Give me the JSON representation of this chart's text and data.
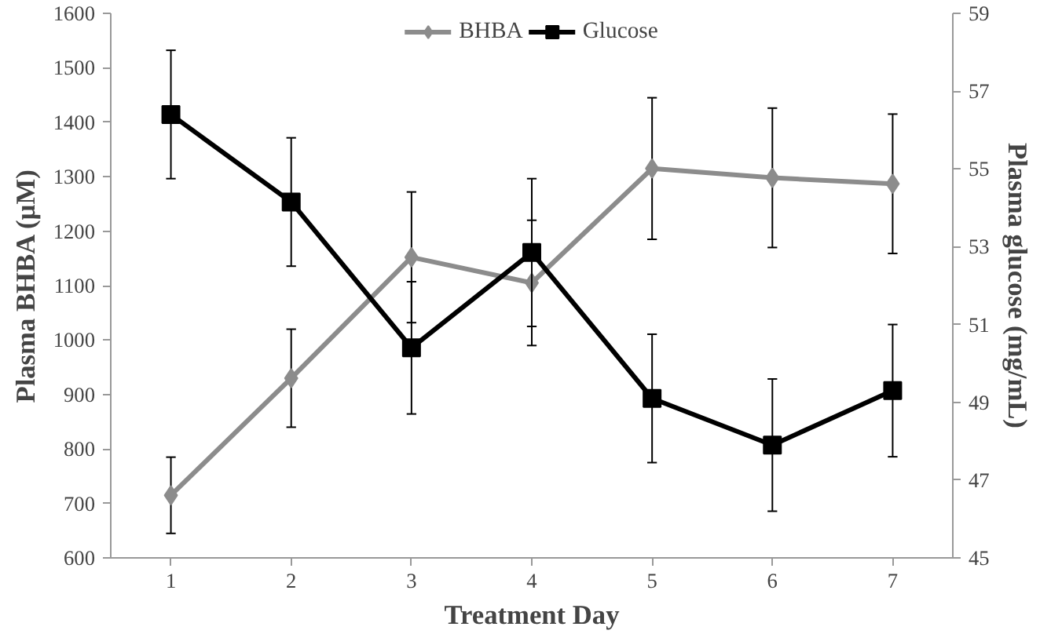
{
  "chart_data": {
    "type": "line",
    "xlabel": "Treatment Day",
    "ylabel": "Plasma BHBA (µM)",
    "y2label": "Plasma glucose (mg/mL)",
    "categories": [
      "1",
      "2",
      "3",
      "4",
      "5",
      "6",
      "7"
    ],
    "ylim": [
      600,
      1600
    ],
    "yticks": [
      600,
      700,
      800,
      900,
      1000,
      1100,
      1200,
      1300,
      1400,
      1500,
      1600
    ],
    "y2lim": [
      45,
      59
    ],
    "y2ticks": [
      45,
      47,
      49,
      51,
      53,
      55,
      57,
      59
    ],
    "grid": false,
    "legend": "top",
    "series": [
      {
        "name": "BHBA",
        "color": "#8c8c8c",
        "marker": "diamond",
        "values": [
          715,
          930,
          1152,
          1105,
          1315,
          1298,
          1287
        ],
        "errors": [
          70,
          90,
          120,
          115,
          130,
          128,
          128
        ]
      },
      {
        "name": "Glucose",
        "color": "#000000",
        "marker": "square",
        "axis": "y2",
        "values": [
          56.4,
          54.15,
          50.4,
          52.85,
          49.1,
          47.9,
          49.3
        ],
        "errors": [
          1.65,
          1.65,
          1.7,
          1.9,
          1.65,
          1.7,
          1.7
        ]
      }
    ]
  }
}
